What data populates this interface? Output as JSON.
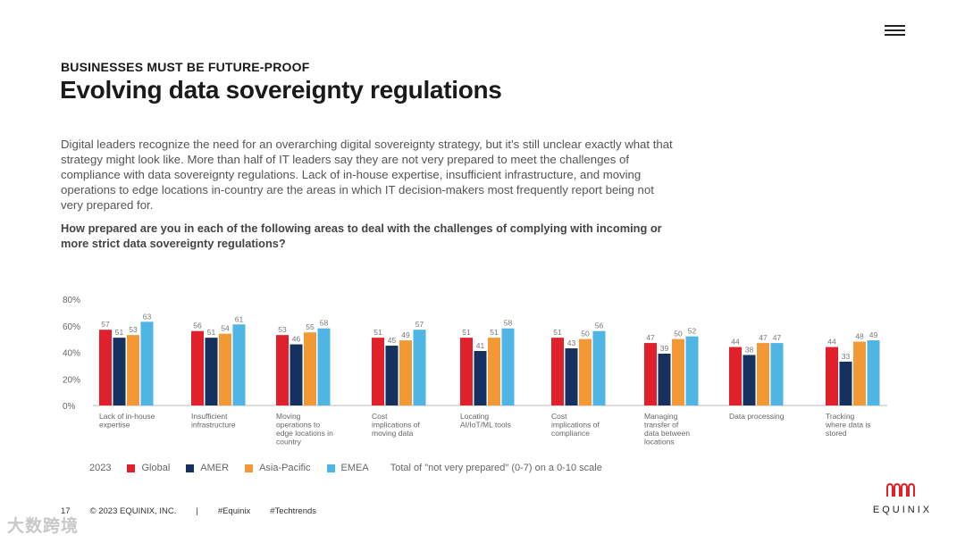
{
  "header": {
    "eyebrow": "BUSINESSES MUST BE FUTURE-PROOF",
    "title": "Evolving data sovereignty regulations"
  },
  "body_text": "Digital leaders recognize the need for an overarching digital sovereignty strategy, but it's still unclear exactly what that strategy might look like. More than half of IT leaders say they are not very prepared to meet the challenges of compliance with data sovereignty regulations. Lack of in-house expertise, insufficient infrastructure, and moving operations to edge locations in-country are the areas in which IT decision-makers most frequently report being not very prepared for.",
  "question": "How prepared are you in each of the following areas to deal with the challenges of complying with incoming or more strict data sovereignty regulations?",
  "chart_data": {
    "type": "bar",
    "title": "",
    "ylim": [
      0,
      80
    ],
    "yticks": [
      "0%",
      "20%",
      "40%",
      "60%",
      "80%"
    ],
    "categories": [
      [
        "Lack of in-house",
        "expertise"
      ],
      [
        "Insufficient",
        "infrastructure"
      ],
      [
        "Moving",
        "operations to",
        "edge locations in",
        "country"
      ],
      [
        "Cost",
        "implications of",
        "moving data"
      ],
      [
        "Locating",
        "AI/IoT/ML tools"
      ],
      [
        "Cost",
        "implications of",
        "compliance"
      ],
      [
        "Managing",
        "transfer of",
        "data between",
        "locations"
      ],
      [
        "Data processing"
      ],
      [
        "Tracking",
        "where data is",
        "stored"
      ]
    ],
    "series": [
      {
        "name": "Global",
        "color": "#e0202b",
        "values": [
          57,
          56,
          53,
          51,
          51,
          51,
          47,
          44,
          44
        ]
      },
      {
        "name": "AMER",
        "color": "#16305f",
        "values": [
          51,
          51,
          46,
          45,
          41,
          43,
          39,
          38,
          33
        ]
      },
      {
        "name": "Asia-Pacific",
        "color": "#f29935",
        "values": [
          53,
          54,
          55,
          49,
          51,
          50,
          50,
          47,
          48
        ]
      },
      {
        "name": "EMEA",
        "color": "#4fb5e4",
        "values": [
          63,
          61,
          58,
          57,
          58,
          56,
          52,
          47,
          49
        ]
      }
    ]
  },
  "legend": {
    "year": "2023",
    "note": "Total of \"not very prepared\" (0-7) on a 0-10 scale"
  },
  "footer": {
    "page": "17",
    "copyright": "© 2023 EQUINIX, INC.",
    "separator": "|",
    "tag1": "#Equinix",
    "tag2": "#Techtrends"
  },
  "logo": {
    "name": "EQUINIX",
    "color": "#e0202b"
  },
  "watermark": "大数跨境"
}
